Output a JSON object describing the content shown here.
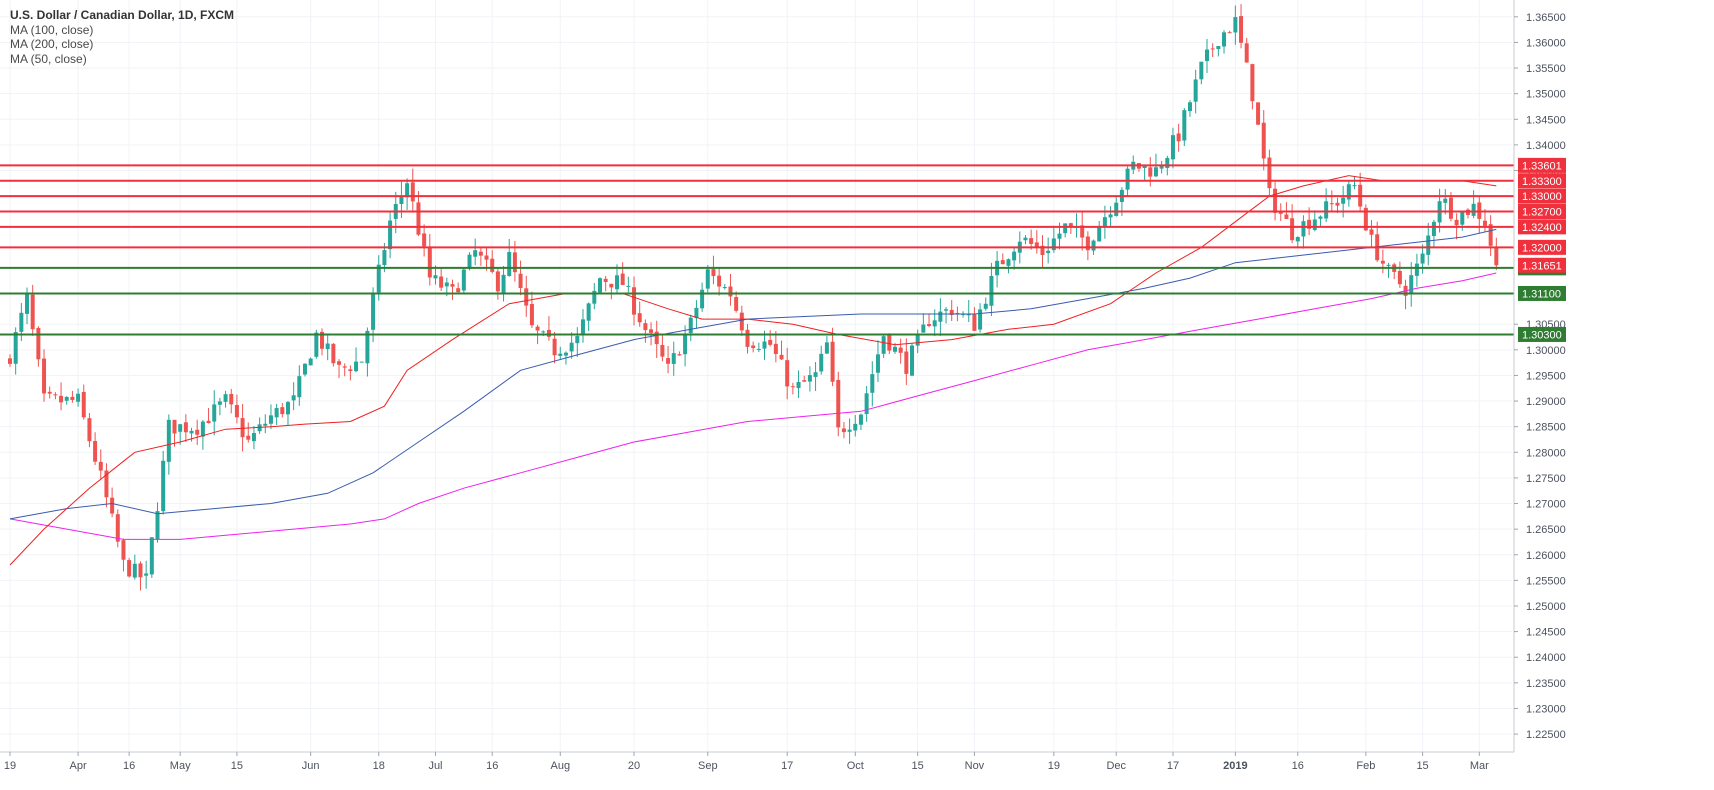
{
  "header": {
    "title": "U.S. Dollar / Canadian Dollar, 1D, FXCM",
    "indicators": [
      "MA (100, close)",
      "MA (200, close)",
      "MA (50, close)"
    ]
  },
  "chart_data": {
    "type": "candlestick",
    "title": "U.S. Dollar / Canadian Dollar, 1D, FXCM",
    "ylim": [
      1.2215,
      1.3675
    ],
    "y_ticks": [
      1.225,
      1.23,
      1.235,
      1.24,
      1.245,
      1.25,
      1.255,
      1.26,
      1.265,
      1.27,
      1.275,
      1.28,
      1.285,
      1.29,
      1.295,
      1.3,
      1.305,
      1.335,
      1.34,
      1.345,
      1.35,
      1.355,
      1.36,
      1.365
    ],
    "x_ticks": [
      "19",
      "Apr",
      "16",
      "May",
      "15",
      "Jun",
      "18",
      "Jul",
      "16",
      "Aug",
      "20",
      "Sep",
      "17",
      "Oct",
      "15",
      "Nov",
      "19",
      "Dec",
      "17",
      "2019",
      "16",
      "Feb",
      "15",
      "Mar"
    ],
    "bold_x_ticks": [
      "2019"
    ],
    "x_tick_bars": [
      0,
      12,
      21,
      30,
      40,
      53,
      65,
      75,
      85,
      97,
      110,
      123,
      137,
      149,
      160,
      170,
      184,
      195,
      205,
      216,
      227,
      239,
      249,
      259
    ],
    "grid": true,
    "horizontal_levels": [
      {
        "value": 1.336,
        "label": "1.33601",
        "color": "#f0303c"
      },
      {
        "value": 1.333,
        "label": "1.33300",
        "color": "#f0303c"
      },
      {
        "value": 1.33,
        "label": "1.33000",
        "color": "#f0303c"
      },
      {
        "value": 1.327,
        "label": "1.32700",
        "color": "#f0303c"
      },
      {
        "value": 1.324,
        "label": "1.32400",
        "color": "#f0303c"
      },
      {
        "value": 1.32,
        "label": "1.32000",
        "color": "#f0303c"
      },
      {
        "value": 1.316,
        "label": "1.31600",
        "color": "#2e7d32"
      },
      {
        "value": 1.311,
        "label": "1.31100",
        "color": "#2e7d32"
      },
      {
        "value": 1.303,
        "label": "1.30300",
        "color": "#2e7d32"
      }
    ],
    "last_price": {
      "value": 1.3165,
      "label": "1.31651",
      "color": "#f0303c"
    },
    "colors": {
      "up": "#26a69a",
      "down": "#ef5350",
      "ma50": "#ef2020",
      "ma100": "#3a5bb0",
      "ma200": "#ee22ee"
    },
    "candle_anchors": [
      [
        0,
        1.299
      ],
      [
        3,
        1.31
      ],
      [
        6,
        1.29
      ],
      [
        12,
        1.29
      ],
      [
        16,
        1.275
      ],
      [
        20,
        1.258
      ],
      [
        24,
        1.255
      ],
      [
        28,
        1.285
      ],
      [
        33,
        1.285
      ],
      [
        38,
        1.29
      ],
      [
        42,
        1.282
      ],
      [
        46,
        1.287
      ],
      [
        50,
        1.29
      ],
      [
        54,
        1.303
      ],
      [
        58,
        1.296
      ],
      [
        62,
        1.298
      ],
      [
        64,
        1.31
      ],
      [
        67,
        1.325
      ],
      [
        70,
        1.333
      ],
      [
        74,
        1.314
      ],
      [
        78,
        1.311
      ],
      [
        82,
        1.319
      ],
      [
        86,
        1.313
      ],
      [
        88,
        1.318
      ],
      [
        92,
        1.304
      ],
      [
        96,
        1.3
      ],
      [
        100,
        1.302
      ],
      [
        104,
        1.314
      ],
      [
        108,
        1.313
      ],
      [
        112,
        1.304
      ],
      [
        116,
        1.296
      ],
      [
        120,
        1.305
      ],
      [
        123,
        1.315
      ],
      [
        127,
        1.311
      ],
      [
        130,
        1.302
      ],
      [
        134,
        1.301
      ],
      [
        138,
        1.292
      ],
      [
        142,
        1.295
      ],
      [
        144,
        1.301
      ],
      [
        146,
        1.284
      ],
      [
        150,
        1.288
      ],
      [
        154,
        1.303
      ],
      [
        158,
        1.297
      ],
      [
        162,
        1.306
      ],
      [
        166,
        1.308
      ],
      [
        170,
        1.305
      ],
      [
        174,
        1.316
      ],
      [
        178,
        1.322
      ],
      [
        182,
        1.319
      ],
      [
        186,
        1.324
      ],
      [
        190,
        1.321
      ],
      [
        194,
        1.328
      ],
      [
        198,
        1.336
      ],
      [
        202,
        1.335
      ],
      [
        206,
        1.342
      ],
      [
        210,
        1.355
      ],
      [
        213,
        1.361
      ],
      [
        216,
        1.364
      ],
      [
        219,
        1.35
      ],
      [
        222,
        1.33
      ],
      [
        226,
        1.323
      ],
      [
        230,
        1.326
      ],
      [
        234,
        1.329
      ],
      [
        237,
        1.332
      ],
      [
        240,
        1.321
      ],
      [
        243,
        1.315
      ],
      [
        246,
        1.312
      ],
      [
        249,
        1.318
      ],
      [
        252,
        1.33
      ],
      [
        255,
        1.326
      ],
      [
        258,
        1.328
      ],
      [
        260,
        1.325
      ],
      [
        262,
        1.3165
      ]
    ],
    "ma50": [
      [
        0,
        1.258
      ],
      [
        6,
        1.265
      ],
      [
        14,
        1.273
      ],
      [
        22,
        1.28
      ],
      [
        30,
        1.282
      ],
      [
        38,
        1.2845
      ],
      [
        46,
        1.285
      ],
      [
        52,
        1.2855
      ],
      [
        60,
        1.286
      ],
      [
        66,
        1.289
      ],
      [
        70,
        1.296
      ],
      [
        78,
        1.302
      ],
      [
        88,
        1.309
      ],
      [
        98,
        1.311
      ],
      [
        108,
        1.311
      ],
      [
        116,
        1.308
      ],
      [
        122,
        1.306
      ],
      [
        130,
        1.306
      ],
      [
        138,
        1.305
      ],
      [
        146,
        1.303
      ],
      [
        156,
        1.301
      ],
      [
        166,
        1.302
      ],
      [
        176,
        1.304
      ],
      [
        184,
        1.305
      ],
      [
        194,
        1.309
      ],
      [
        202,
        1.315
      ],
      [
        210,
        1.32
      ],
      [
        216,
        1.325
      ],
      [
        222,
        1.33
      ],
      [
        228,
        1.332
      ],
      [
        236,
        1.334
      ],
      [
        242,
        1.333
      ],
      [
        250,
        1.333
      ],
      [
        256,
        1.333
      ],
      [
        262,
        1.332
      ]
    ],
    "ma100": [
      [
        0,
        1.267
      ],
      [
        10,
        1.269
      ],
      [
        18,
        1.27
      ],
      [
        26,
        1.268
      ],
      [
        36,
        1.269
      ],
      [
        46,
        1.27
      ],
      [
        56,
        1.272
      ],
      [
        64,
        1.276
      ],
      [
        72,
        1.282
      ],
      [
        80,
        1.288
      ],
      [
        90,
        1.296
      ],
      [
        100,
        1.299
      ],
      [
        110,
        1.302
      ],
      [
        120,
        1.304
      ],
      [
        130,
        1.306
      ],
      [
        140,
        1.3065
      ],
      [
        150,
        1.307
      ],
      [
        160,
        1.307
      ],
      [
        170,
        1.307
      ],
      [
        180,
        1.308
      ],
      [
        190,
        1.31
      ],
      [
        200,
        1.312
      ],
      [
        208,
        1.314
      ],
      [
        216,
        1.317
      ],
      [
        224,
        1.318
      ],
      [
        232,
        1.319
      ],
      [
        240,
        1.32
      ],
      [
        248,
        1.321
      ],
      [
        256,
        1.322
      ],
      [
        262,
        1.3235
      ]
    ],
    "ma200": [
      [
        0,
        1.267
      ],
      [
        10,
        1.265
      ],
      [
        20,
        1.263
      ],
      [
        30,
        1.263
      ],
      [
        40,
        1.264
      ],
      [
        50,
        1.265
      ],
      [
        60,
        1.266
      ],
      [
        66,
        1.267
      ],
      [
        72,
        1.27
      ],
      [
        80,
        1.273
      ],
      [
        90,
        1.276
      ],
      [
        100,
        1.279
      ],
      [
        110,
        1.282
      ],
      [
        120,
        1.284
      ],
      [
        130,
        1.286
      ],
      [
        140,
        1.287
      ],
      [
        150,
        1.288
      ],
      [
        160,
        1.291
      ],
      [
        170,
        1.294
      ],
      [
        180,
        1.297
      ],
      [
        190,
        1.3
      ],
      [
        200,
        1.302
      ],
      [
        210,
        1.304
      ],
      [
        220,
        1.306
      ],
      [
        230,
        1.308
      ],
      [
        240,
        1.31
      ],
      [
        248,
        1.312
      ],
      [
        256,
        1.3135
      ],
      [
        262,
        1.315
      ]
    ]
  }
}
